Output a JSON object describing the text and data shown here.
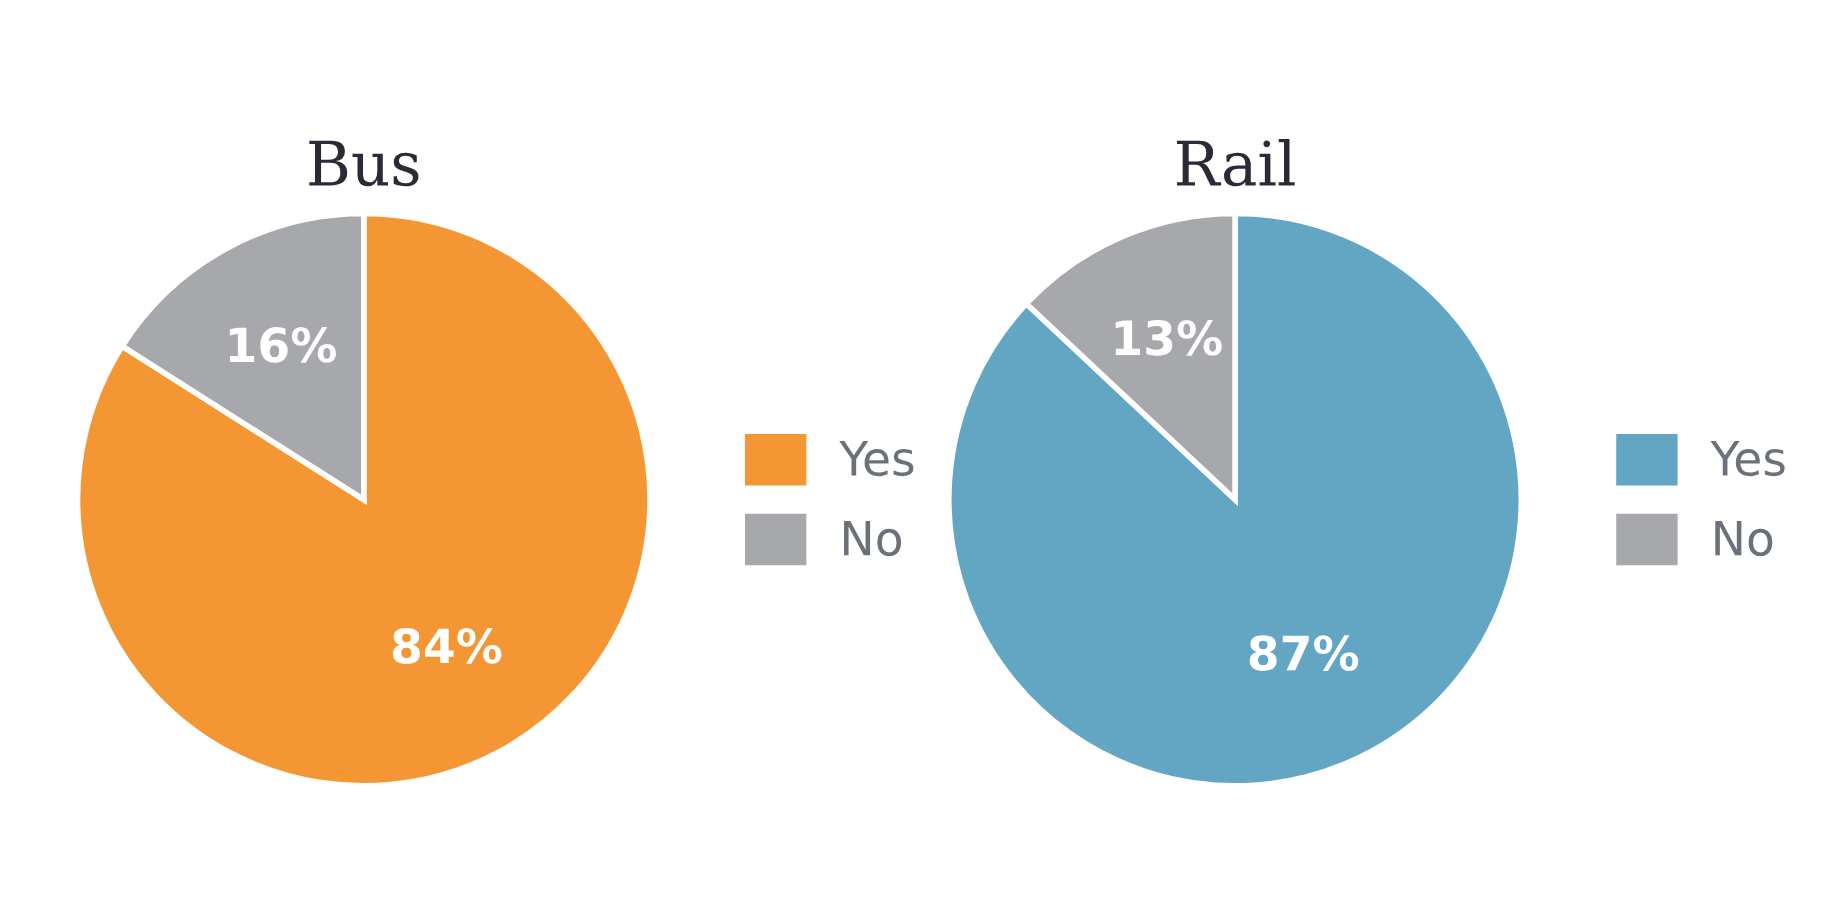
{
  "chart_data": [
    {
      "type": "pie",
      "title": "Bus",
      "categories": [
        "Yes",
        "No"
      ],
      "values": [
        84,
        16
      ],
      "value_labels": [
        "84%",
        "16%"
      ],
      "colors": [
        "#f59634",
        "#a7a8ab"
      ],
      "legend": "right"
    },
    {
      "type": "pie",
      "title": "Rail",
      "categories": [
        "Yes",
        "No"
      ],
      "values": [
        87,
        13
      ],
      "value_labels": [
        "87%",
        "13%"
      ],
      "colors": [
        "#62a6c4",
        "#a7a8ab"
      ],
      "legend": "right"
    }
  ]
}
